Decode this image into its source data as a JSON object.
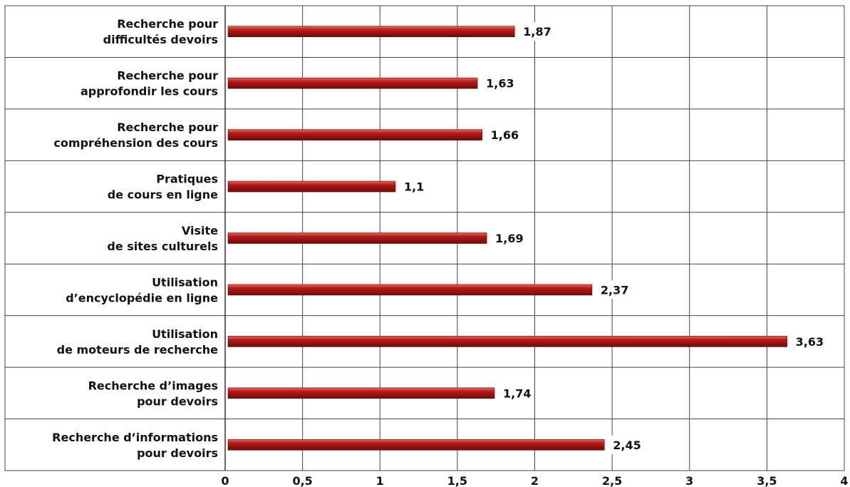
{
  "chart_data": {
    "type": "bar",
    "orientation": "horizontal",
    "title": "",
    "xlabel": "",
    "ylabel": "",
    "xlim": [
      0,
      4
    ],
    "x_ticks": [
      0,
      0.5,
      1,
      1.5,
      2,
      2.5,
      3,
      3.5,
      4
    ],
    "x_tick_labels": [
      "0",
      "0,5",
      "1",
      "1,5",
      "2",
      "2,5",
      "3",
      "3,5",
      "4"
    ],
    "grid": true,
    "legend": "none",
    "bar_color": "#b81818",
    "bar_color_dark": "#6e0b0b",
    "bar_color_light": "#e26a5a",
    "categories": [
      [
        "Recherche pour",
        "difficultés devoirs"
      ],
      [
        "Recherche pour",
        "approfondir les cours"
      ],
      [
        "Recherche pour",
        "compréhension des cours"
      ],
      [
        "Pratiques",
        "de cours en ligne"
      ],
      [
        "Visite",
        "de sites culturels"
      ],
      [
        "Utilisation",
        "d’encyclopédie en ligne"
      ],
      [
        "Utilisation",
        "de moteurs de recherche"
      ],
      [
        "Recherche d’images",
        "pour devoirs"
      ],
      [
        "Recherche d’informations",
        "pour devoirs"
      ]
    ],
    "values": [
      1.87,
      1.63,
      1.66,
      1.1,
      1.69,
      2.37,
      3.63,
      1.74,
      2.45
    ],
    "value_labels": [
      "1,87",
      "1,63",
      "1,66",
      "1,1",
      "1,69",
      "2,37",
      "3,63",
      "1,74",
      "2,45"
    ]
  }
}
